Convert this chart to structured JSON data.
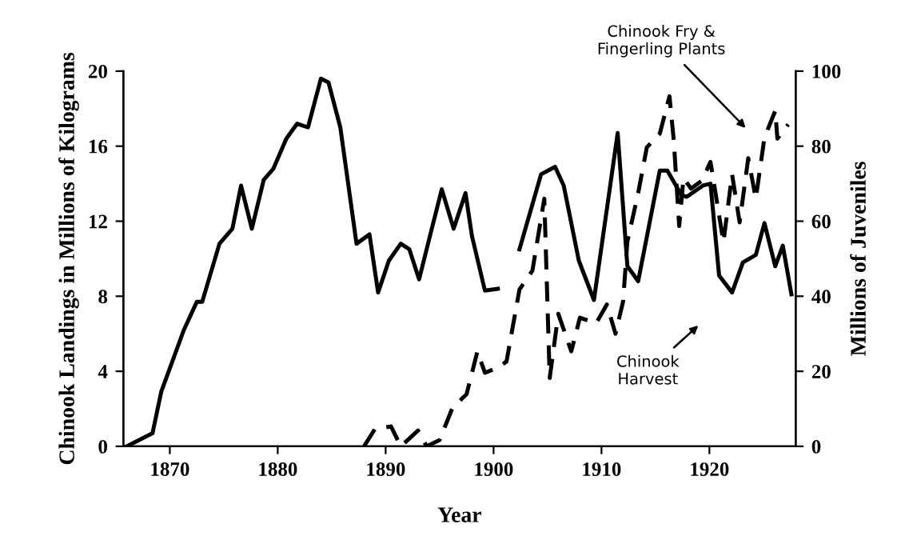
{
  "chart_data": {
    "type": "line",
    "xlabel": "Year",
    "ylabel": "Chinook Landings in Millions of Kilograms",
    "y2label": "Millions of Juveniles",
    "xlim": [
      1865.7,
      1928
    ],
    "xticks": [
      1870,
      1880,
      1890,
      1900,
      1910,
      1920
    ],
    "ylim": [
      0,
      20
    ],
    "yticks": [
      0,
      4,
      8,
      12,
      16,
      20
    ],
    "y2lim": [
      0,
      100
    ],
    "y2ticks": [
      0,
      20,
      40,
      60,
      80,
      100
    ],
    "grid": false,
    "legend": false,
    "marker": "none",
    "series": [
      {
        "color": "#000000",
        "line_style": "solid",
        "x": [
          1866.0,
          1868.4,
          1869.2,
          1871.3,
          1872.5,
          1873.0,
          1874.6,
          1875.8,
          1876.6,
          1877.6,
          1878.7,
          1879.6,
          1880.8,
          1881.8,
          1882.8,
          1884.0,
          1884.7,
          1885.8,
          1887.3,
          1888.5,
          1889.3,
          1890.3,
          1891.4,
          1892.2,
          1893.1,
          1894.1,
          1895.2,
          1896.3,
          1897.4,
          1898.0,
          1899.2,
          1900.4,
          1901.4,
          1902.4,
          1904.4,
          1905.7,
          1906.5,
          1907.9,
          1909.3,
          1911.5,
          1912.4,
          1913.4,
          1915.4,
          1916.1,
          1917.4,
          1917.9,
          1919.4,
          1920.1,
          1920.9,
          1922.1,
          1923.1,
          1924.3,
          1925.1,
          1926.1,
          1926.8,
          1927.6
        ],
        "values": [
          0,
          0.7,
          2.9,
          6.2,
          7.7,
          7.7,
          10.8,
          11.6,
          13.9,
          11.6,
          14.2,
          14.8,
          16.4,
          17.2,
          17.0,
          19.6,
          19.4,
          17.0,
          10.8,
          11.3,
          8.2,
          9.9,
          10.8,
          10.5,
          8.9,
          11.2,
          13.7,
          11.6,
          13.5,
          11.2,
          8.3,
          8.4,
          null,
          10.5,
          14.5,
          14.9,
          13.9,
          9.9,
          7.8,
          16.7,
          9.6,
          8.8,
          14.7,
          14.7,
          13.4,
          13.3,
          13.9,
          14.0,
          9.1,
          8.2,
          9.8,
          10.2,
          11.9,
          9.6,
          10.7,
          8.1
        ]
      },
      {
        "color": "#000000",
        "line_style": "dashed",
        "axis": "y2",
        "x": [
          1888.0,
          1889.0,
          1890.5,
          1891.4,
          1893.0,
          1893.8,
          1895.0,
          1896.2,
          1897.5,
          1898.5,
          1899.2,
          1900.4,
          1901.2,
          1902.4,
          1903.6,
          1904.7,
          1905.2,
          1906.0,
          1907.2,
          1908.0,
          1909.5,
          1910.5,
          1911.3,
          1912.0,
          1912.4,
          1913.4,
          1914.2,
          1915.4,
          1916.3,
          1916.7,
          1917.2,
          1917.6,
          1918.3,
          1919.3,
          1920.1,
          1921.3,
          1922.1,
          1922.8,
          1923.6,
          1924.3,
          1925.1,
          1926.1,
          1926.3,
          1927.3
        ],
        "values": [
          0,
          4.6,
          5.3,
          0,
          4.2,
          0,
          1.7,
          10.3,
          13.9,
          25.3,
          19.6,
          21,
          22.6,
          41.8,
          46.8,
          66,
          18.2,
          35.3,
          25.3,
          34.3,
          32.8,
          37.8,
          30,
          38.6,
          54.6,
          67.5,
          79.7,
          83.3,
          93.3,
          81.5,
          58.7,
          71.5,
          68.7,
          70.8,
          75.8,
          54.4,
          72.5,
          59.7,
          76.8,
          66,
          82.3,
          89.4,
          82,
          85.8
        ]
      }
    ],
    "annotations": [
      "Chinook Fry &\nFingerling Plants",
      "Chinook\nHarvest"
    ]
  }
}
